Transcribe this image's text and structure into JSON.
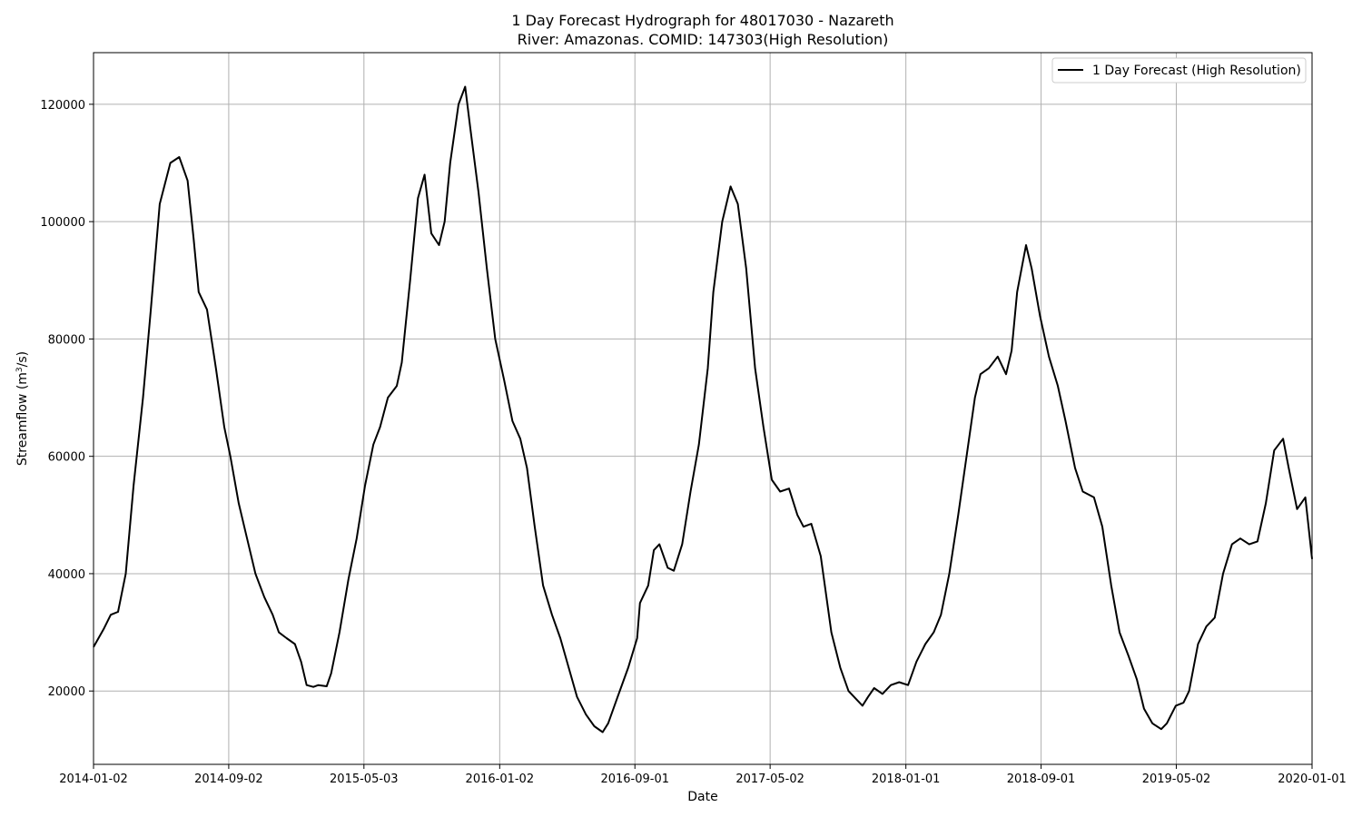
{
  "chart_data": {
    "type": "line",
    "title": "1 Day Forecast Hydrograph for 48017030 - Nazareth",
    "subtitle": "River: Amazonas. COMID: 147303(High Resolution)",
    "xlabel": "Date",
    "ylabel": "Streamflow (m",
    "ylabel_sup": "3",
    "ylabel_suffix": "/s)",
    "xlim": [
      "2014-01-02",
      "2020-01-01"
    ],
    "ylim": [
      7500,
      128800
    ],
    "x_ticks": [
      "2014-01-02",
      "2014-09-02",
      "2015-05-03",
      "2016-01-02",
      "2016-09-01",
      "2017-05-02",
      "2018-01-01",
      "2018-09-01",
      "2019-05-02",
      "2020-01-01"
    ],
    "y_ticks": [
      20000,
      40000,
      60000,
      80000,
      100000,
      120000
    ],
    "grid": true,
    "legend_position": "top-right",
    "colors": {
      "line": "#000000",
      "grid": "#b0b0b0",
      "axes": "#000000"
    },
    "series": [
      {
        "name": "1 Day Forecast (High Resolution)",
        "points": [
          [
            "2014-01-02",
            27500
          ],
          [
            "2014-01-20",
            30500
          ],
          [
            "2014-02-02",
            33000
          ],
          [
            "2014-02-15",
            33500
          ],
          [
            "2014-03-01",
            40000
          ],
          [
            "2014-03-15",
            55000
          ],
          [
            "2014-04-01",
            70000
          ],
          [
            "2014-04-15",
            85000
          ],
          [
            "2014-05-01",
            103000
          ],
          [
            "2014-05-20",
            110000
          ],
          [
            "2014-06-05",
            111000
          ],
          [
            "2014-06-20",
            107000
          ],
          [
            "2014-07-01",
            97000
          ],
          [
            "2014-07-10",
            88000
          ],
          [
            "2014-07-25",
            85000
          ],
          [
            "2014-08-10",
            75000
          ],
          [
            "2014-08-25",
            65000
          ],
          [
            "2014-09-05",
            60000
          ],
          [
            "2014-09-20",
            52000
          ],
          [
            "2014-10-05",
            46000
          ],
          [
            "2014-10-20",
            40000
          ],
          [
            "2014-11-05",
            36000
          ],
          [
            "2014-11-20",
            33000
          ],
          [
            "2014-12-01",
            30000
          ],
          [
            "2014-12-15",
            29000
          ],
          [
            "2014-12-30",
            28000
          ],
          [
            "2015-01-10",
            25000
          ],
          [
            "2015-01-20",
            21000
          ],
          [
            "2015-02-01",
            20700
          ],
          [
            "2015-02-10",
            21000
          ],
          [
            "2015-02-25",
            20800
          ],
          [
            "2015-03-05",
            23000
          ],
          [
            "2015-03-20",
            30000
          ],
          [
            "2015-04-05",
            39000
          ],
          [
            "2015-04-20",
            46000
          ],
          [
            "2015-05-05",
            55000
          ],
          [
            "2015-05-20",
            62000
          ],
          [
            "2015-06-01",
            65000
          ],
          [
            "2015-06-15",
            70000
          ],
          [
            "2015-07-01",
            72000
          ],
          [
            "2015-07-10",
            76000
          ],
          [
            "2015-07-25",
            90000
          ],
          [
            "2015-08-08",
            104000
          ],
          [
            "2015-08-20",
            108000
          ],
          [
            "2015-09-01",
            98000
          ],
          [
            "2015-09-15",
            96000
          ],
          [
            "2015-09-25",
            100000
          ],
          [
            "2015-10-05",
            110000
          ],
          [
            "2015-10-20",
            120000
          ],
          [
            "2015-11-01",
            123000
          ],
          [
            "2015-11-10",
            116000
          ],
          [
            "2015-11-25",
            105000
          ],
          [
            "2015-12-10",
            92000
          ],
          [
            "2015-12-25",
            80000
          ],
          [
            "2016-01-10",
            73000
          ],
          [
            "2016-01-25",
            66000
          ],
          [
            "2016-02-08",
            63000
          ],
          [
            "2016-02-20",
            58000
          ],
          [
            "2016-03-05",
            48000
          ],
          [
            "2016-03-20",
            38000
          ],
          [
            "2016-04-05",
            33000
          ],
          [
            "2016-04-20",
            29000
          ],
          [
            "2016-05-05",
            24000
          ],
          [
            "2016-05-20",
            19000
          ],
          [
            "2016-06-05",
            16000
          ],
          [
            "2016-06-20",
            14000
          ],
          [
            "2016-07-05",
            13000
          ],
          [
            "2016-07-15",
            14500
          ],
          [
            "2016-08-01",
            19000
          ],
          [
            "2016-08-20",
            24000
          ],
          [
            "2016-09-05",
            29000
          ],
          [
            "2016-09-10",
            35000
          ],
          [
            "2016-09-25",
            38000
          ],
          [
            "2016-10-05",
            44000
          ],
          [
            "2016-10-15",
            45000
          ],
          [
            "2016-10-30",
            41000
          ],
          [
            "2016-11-10",
            40500
          ],
          [
            "2016-11-25",
            45000
          ],
          [
            "2016-12-10",
            54000
          ],
          [
            "2016-12-25",
            62000
          ],
          [
            "2017-01-10",
            75000
          ],
          [
            "2017-01-20",
            88000
          ],
          [
            "2017-02-05",
            100000
          ],
          [
            "2017-02-20",
            106000
          ],
          [
            "2017-03-05",
            103000
          ],
          [
            "2017-03-20",
            92000
          ],
          [
            "2017-04-05",
            75000
          ],
          [
            "2017-04-20",
            65000
          ],
          [
            "2017-05-05",
            56000
          ],
          [
            "2017-05-20",
            54000
          ],
          [
            "2017-06-05",
            54500
          ],
          [
            "2017-06-20",
            50000
          ],
          [
            "2017-07-01",
            48000
          ],
          [
            "2017-07-15",
            48500
          ],
          [
            "2017-08-01",
            43000
          ],
          [
            "2017-08-20",
            30000
          ],
          [
            "2017-09-05",
            24000
          ],
          [
            "2017-09-20",
            20000
          ],
          [
            "2017-10-05",
            18500
          ],
          [
            "2017-10-15",
            17500
          ],
          [
            "2017-10-25",
            19000
          ],
          [
            "2017-11-05",
            20500
          ],
          [
            "2017-11-20",
            19500
          ],
          [
            "2017-12-05",
            21000
          ],
          [
            "2017-12-20",
            21500
          ],
          [
            "2018-01-05",
            21000
          ],
          [
            "2018-01-20",
            25000
          ],
          [
            "2018-02-05",
            28000
          ],
          [
            "2018-02-20",
            30000
          ],
          [
            "2018-03-05",
            33000
          ],
          [
            "2018-03-20",
            40000
          ],
          [
            "2018-04-05",
            50000
          ],
          [
            "2018-04-20",
            60000
          ],
          [
            "2018-05-05",
            70000
          ],
          [
            "2018-05-15",
            74000
          ],
          [
            "2018-05-30",
            75000
          ],
          [
            "2018-06-15",
            77000
          ],
          [
            "2018-06-30",
            74000
          ],
          [
            "2018-07-10",
            78000
          ],
          [
            "2018-07-20",
            88000
          ],
          [
            "2018-08-05",
            96000
          ],
          [
            "2018-08-15",
            92000
          ],
          [
            "2018-08-30",
            84000
          ],
          [
            "2018-09-15",
            77000
          ],
          [
            "2018-10-01",
            72000
          ],
          [
            "2018-10-15",
            66000
          ],
          [
            "2018-11-01",
            58000
          ],
          [
            "2018-11-15",
            54000
          ],
          [
            "2018-12-05",
            53000
          ],
          [
            "2018-12-20",
            48000
          ],
          [
            "2019-01-05",
            38000
          ],
          [
            "2019-01-20",
            30000
          ],
          [
            "2019-02-05",
            26000
          ],
          [
            "2019-02-20",
            22000
          ],
          [
            "2019-03-05",
            17000
          ],
          [
            "2019-03-20",
            14500
          ],
          [
            "2019-04-05",
            13500
          ],
          [
            "2019-04-15",
            14500
          ],
          [
            "2019-05-01",
            17500
          ],
          [
            "2019-05-15",
            18000
          ],
          [
            "2019-05-25",
            20000
          ],
          [
            "2019-06-10",
            28000
          ],
          [
            "2019-06-25",
            31000
          ],
          [
            "2019-07-10",
            32500
          ],
          [
            "2019-07-25",
            40000
          ],
          [
            "2019-08-10",
            45000
          ],
          [
            "2019-08-25",
            46000
          ],
          [
            "2019-09-10",
            45000
          ],
          [
            "2019-09-25",
            45500
          ],
          [
            "2019-10-10",
            52000
          ],
          [
            "2019-10-25",
            61000
          ],
          [
            "2019-11-10",
            63000
          ],
          [
            "2019-11-20",
            58000
          ],
          [
            "2019-12-05",
            51000
          ],
          [
            "2019-12-20",
            53000
          ],
          [
            "2020-01-01",
            42500
          ]
        ]
      }
    ]
  }
}
